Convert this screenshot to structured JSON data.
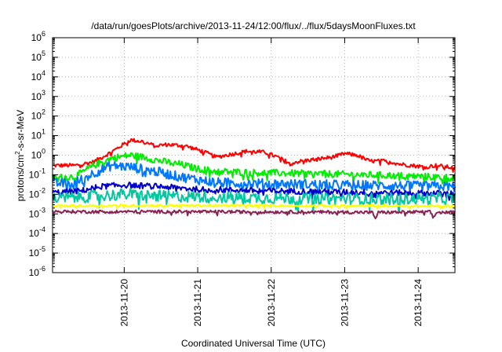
{
  "chart_data": {
    "type": "line",
    "title": "/data/run/goesPlots/archive/2013-11-24/12:00/flux/../flux/5daysMoonFluxes.txt",
    "xlabel": "Coordinated Universal Time (UTC)",
    "ylabel": {
      "prefix": "protons/cm",
      "sup": "2",
      "suffix": "-s-sr-MeV"
    },
    "y_scale": "log",
    "ylim": [
      1e-06,
      1000000.0
    ],
    "y_ticks": [
      {
        "value": 1000000.0,
        "base": "10",
        "exp": "6"
      },
      {
        "value": 100000.0,
        "base": "10",
        "exp": "5"
      },
      {
        "value": 10000.0,
        "base": "10",
        "exp": "4"
      },
      {
        "value": 1000.0,
        "base": "10",
        "exp": "3"
      },
      {
        "value": 100.0,
        "base": "10",
        "exp": "2"
      },
      {
        "value": 10.0,
        "base": "10",
        "exp": "1"
      },
      {
        "value": 1.0,
        "base": "10",
        "exp": "0"
      },
      {
        "value": 0.1,
        "base": "10",
        "exp": "-1"
      },
      {
        "value": 0.01,
        "base": "10",
        "exp": "-2"
      },
      {
        "value": 0.001,
        "base": "10",
        "exp": "-3"
      },
      {
        "value": 0.0001,
        "base": "10",
        "exp": "-4"
      },
      {
        "value": 1e-05,
        "base": "10",
        "exp": "-5"
      },
      {
        "value": 1e-06,
        "base": "10",
        "exp": "-6"
      }
    ],
    "xlim": [
      "2013-11-19 00:36",
      "2013-11-24 12:00"
    ],
    "x_ticks": [
      "2013-11-20",
      "2013-11-21",
      "2013-11-22",
      "2013-11-23",
      "2013-11-24"
    ],
    "grid": true,
    "series": [
      {
        "color": "#ff0000",
        "noise": 0.1,
        "points": [
          [
            "2013-11-19 00:36",
            0.3
          ],
          [
            "2013-11-19 08:00",
            0.3
          ],
          [
            "2013-11-19 14:00",
            0.45
          ],
          [
            "2013-11-19 20:00",
            1.5
          ],
          [
            "2013-11-20 02:00",
            6
          ],
          [
            "2013-11-20 06:00",
            5
          ],
          [
            "2013-11-20 10:00",
            3
          ],
          [
            "2013-11-20 14:00",
            3.5
          ],
          [
            "2013-11-20 20:00",
            3
          ],
          [
            "2013-11-21 02:00",
            1.5
          ],
          [
            "2013-11-21 06:00",
            0.8
          ],
          [
            "2013-11-21 12:00",
            1.2
          ],
          [
            "2013-11-21 16:00",
            1.6
          ],
          [
            "2013-11-21 22:00",
            1.4
          ],
          [
            "2013-11-22 02:00",
            0.8
          ],
          [
            "2013-11-22 06:00",
            0.4
          ],
          [
            "2013-11-22 10:00",
            0.5
          ],
          [
            "2013-11-22 14:00",
            0.6
          ],
          [
            "2013-11-22 20:00",
            0.8
          ],
          [
            "2013-11-23 00:00",
            1.2
          ],
          [
            "2013-11-23 04:00",
            1.0
          ],
          [
            "2013-11-23 08:00",
            0.5
          ],
          [
            "2013-11-23 14:00",
            0.5
          ],
          [
            "2013-11-23 18:00",
            0.35
          ],
          [
            "2013-11-23 22:00",
            0.3
          ],
          [
            "2013-11-24 02:00",
            0.25
          ],
          [
            "2013-11-24 06:00",
            0.3
          ],
          [
            "2013-11-24 12:00",
            0.22
          ]
        ]
      },
      {
        "color": "#00ee00",
        "noise": 0.18,
        "points": [
          [
            "2013-11-19 00:36",
            0.07
          ],
          [
            "2013-11-19 08:00",
            0.08
          ],
          [
            "2013-11-19 14:00",
            0.3
          ],
          [
            "2013-11-19 20:00",
            0.7
          ],
          [
            "2013-11-20 02:00",
            1.0
          ],
          [
            "2013-11-20 06:00",
            0.8
          ],
          [
            "2013-11-20 12:00",
            0.5
          ],
          [
            "2013-11-20 18:00",
            0.35
          ],
          [
            "2013-11-21 00:00",
            0.2
          ],
          [
            "2013-11-21 06:00",
            0.15
          ],
          [
            "2013-11-21 18:00",
            0.13
          ],
          [
            "2013-11-22 06:00",
            0.12
          ],
          [
            "2013-11-22 18:00",
            0.11
          ],
          [
            "2013-11-23 06:00",
            0.1
          ],
          [
            "2013-11-23 18:00",
            0.09
          ],
          [
            "2013-11-24 12:00",
            0.07
          ]
        ]
      },
      {
        "color": "#0077ff",
        "noise": 0.25,
        "points": [
          [
            "2013-11-19 00:36",
            0.035
          ],
          [
            "2013-11-19 08:00",
            0.04
          ],
          [
            "2013-11-19 14:00",
            0.12
          ],
          [
            "2013-11-19 20:00",
            0.3
          ],
          [
            "2013-11-20 02:00",
            0.25
          ],
          [
            "2013-11-20 10:00",
            0.15
          ],
          [
            "2013-11-20 18:00",
            0.08
          ],
          [
            "2013-11-21 06:00",
            0.04
          ],
          [
            "2013-11-22 00:00",
            0.035
          ],
          [
            "2013-11-23 00:00",
            0.03
          ],
          [
            "2013-11-24 12:00",
            0.025
          ]
        ]
      },
      {
        "color": "#0000cc",
        "noise": 0.15,
        "points": [
          [
            "2013-11-19 00:36",
            0.012
          ],
          [
            "2013-11-19 10:00",
            0.015
          ],
          [
            "2013-11-19 16:00",
            0.025
          ],
          [
            "2013-11-20 00:00",
            0.03
          ],
          [
            "2013-11-20 12:00",
            0.025
          ],
          [
            "2013-11-21 00:00",
            0.018
          ],
          [
            "2013-11-22 00:00",
            0.015
          ],
          [
            "2013-11-23 00:00",
            0.013
          ],
          [
            "2013-11-24 12:00",
            0.011
          ]
        ]
      },
      {
        "color": "#00c8a0",
        "noise": 0.3,
        "points": [
          [
            "2013-11-19 00:36",
            0.006
          ],
          [
            "2013-11-19 14:00",
            0.008
          ],
          [
            "2013-11-20 00:00",
            0.01
          ],
          [
            "2013-11-20 12:00",
            0.008
          ],
          [
            "2013-11-21 12:00",
            0.007
          ],
          [
            "2013-11-22 12:00",
            0.006
          ],
          [
            "2013-11-24 12:00",
            0.006
          ]
        ]
      },
      {
        "color": "#ffff00",
        "noise": 0.06,
        "points": [
          [
            "2013-11-19 00:36",
            0.0026
          ],
          [
            "2013-11-20 12:00",
            0.0027
          ],
          [
            "2013-11-22 12:00",
            0.0026
          ],
          [
            "2013-11-24 12:00",
            0.0025
          ]
        ]
      },
      {
        "color": "#8b2252",
        "noise": 0.08,
        "points": [
          [
            "2013-11-19 00:36",
            0.0013
          ],
          [
            "2013-11-20 12:00",
            0.0013
          ],
          [
            "2013-11-22 12:00",
            0.00125
          ],
          [
            "2013-11-23 09:00",
            0.0012
          ],
          [
            "2013-11-23 10:00",
            0.0006
          ],
          [
            "2013-11-23 11:00",
            0.0012
          ],
          [
            "2013-11-24 04:00",
            0.00125
          ],
          [
            "2013-11-24 05:00",
            0.0006
          ],
          [
            "2013-11-24 06:00",
            0.0012
          ],
          [
            "2013-11-24 12:00",
            0.0012
          ]
        ]
      }
    ]
  }
}
